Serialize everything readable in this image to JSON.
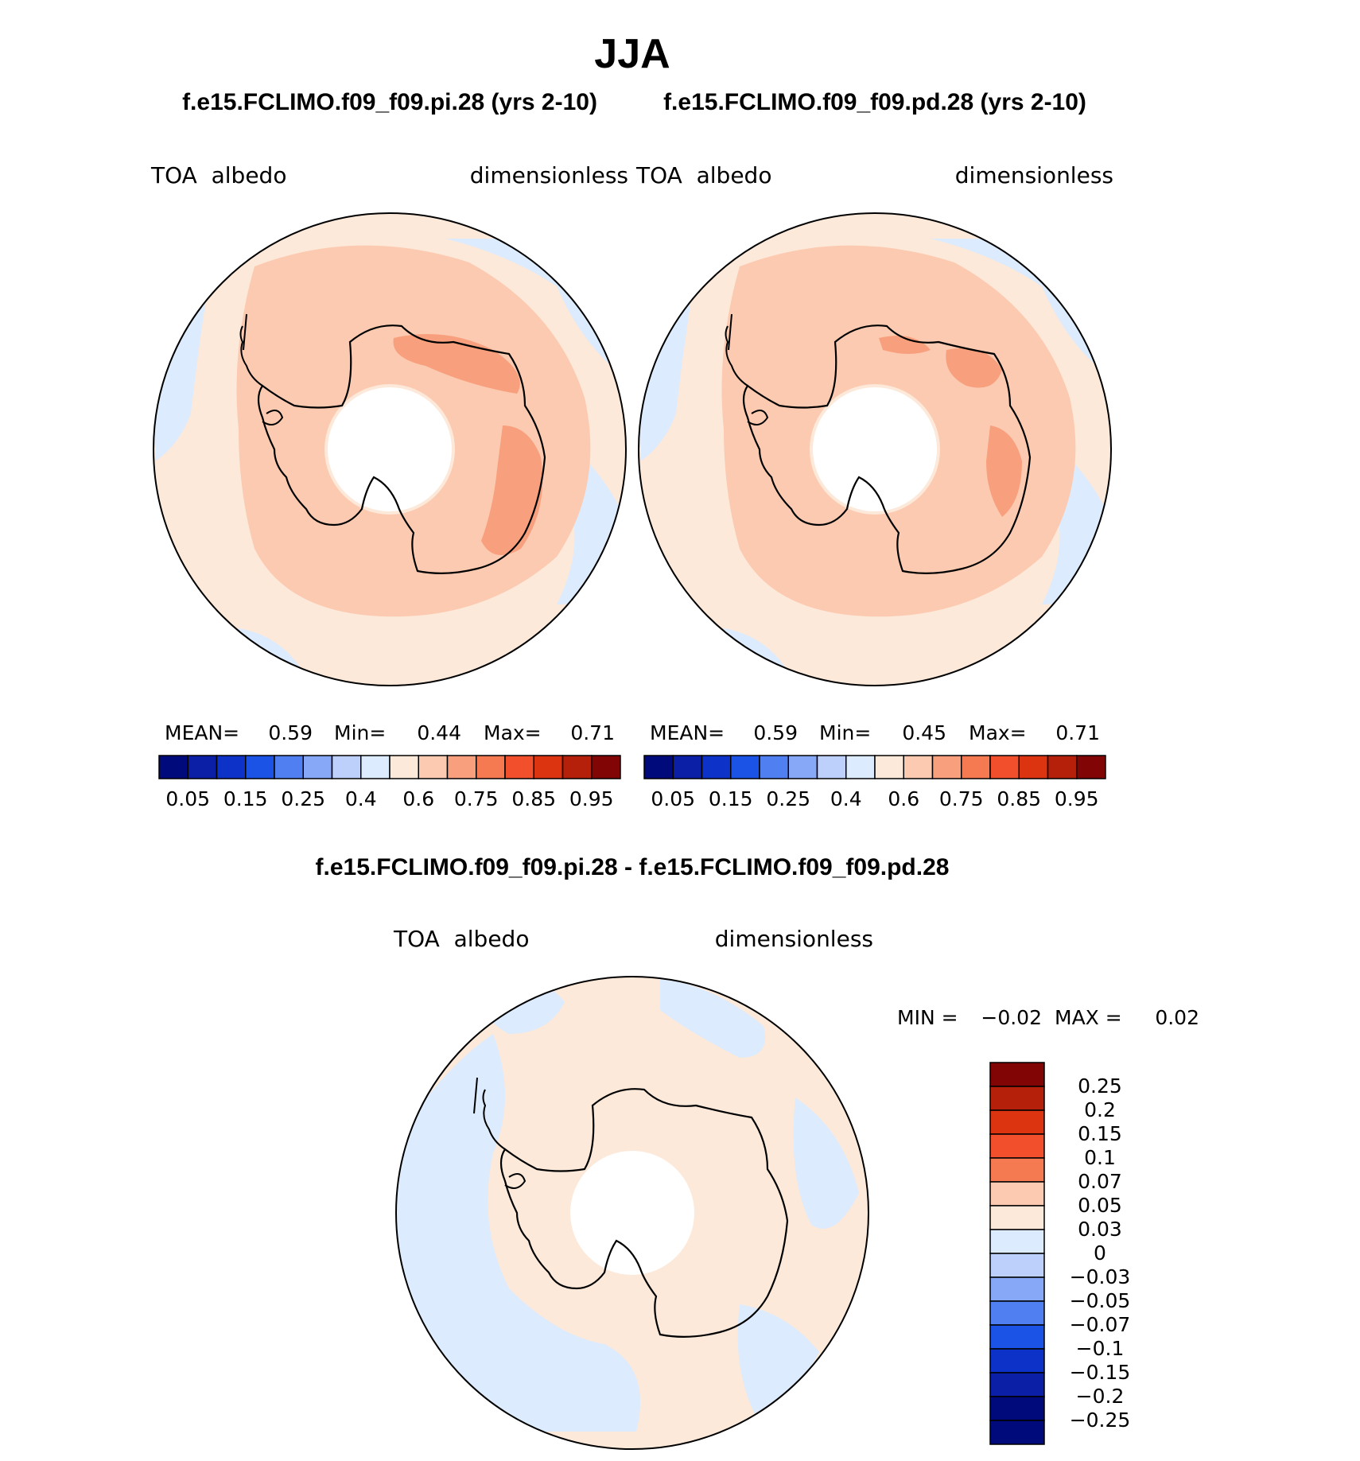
{
  "figure": {
    "title": "JJA",
    "header_left": "f.e15.FCLIMO.f09_f09.pi.28 (yrs 2-10)",
    "header_right": "f.e15.FCLIMO.f09_f09.pd.28 (yrs 2-10)",
    "diff_title": "f.e15.FCLIMO.f09_f09.pi.28 - f.e15.FCLIMO.f09_f09.pd.28"
  },
  "panels": [
    {
      "variable": "TOA  albedo",
      "units": "dimensionless",
      "stats": {
        "mean_label": "MEAN=",
        "mean": "0.59",
        "min_label": "Min=",
        "min": "0.44",
        "max_label": "Max=",
        "max": "0.71"
      }
    },
    {
      "variable": "TOA  albedo",
      "units": "dimensionless",
      "stats": {
        "mean_label": "MEAN=",
        "mean": "0.59",
        "min_label": "Min=",
        "min": "0.45",
        "max_label": "Max=",
        "max": "0.71"
      }
    }
  ],
  "diff_panel": {
    "variable": "TOA  albedo",
    "units": "dimensionless",
    "min_label": "MIN =",
    "min": "−0.02",
    "max_label": "MAX =",
    "max": "0.02"
  },
  "colorbar_horizontal": {
    "colors": [
      "#000a7a",
      "#0a1fa5",
      "#0d32c8",
      "#1a53e6",
      "#4f7ff0",
      "#86a8f6",
      "#bcd0fb",
      "#dcebfd",
      "#fde9d9",
      "#fccab1",
      "#f8a07d",
      "#f57a52",
      "#f24f2c",
      "#dc3310",
      "#b4200a",
      "#820505"
    ],
    "tick_labels": [
      "0.05",
      "0.15",
      "0.25",
      "0.4",
      "0.6",
      "0.75",
      "0.85",
      "0.95"
    ]
  },
  "colorbar_vertical": {
    "colors_top_to_bottom": [
      "#820505",
      "#b4200a",
      "#dc3310",
      "#f24f2c",
      "#f57a52",
      "#fccab1",
      "#fde9d9",
      "#dcebfd",
      "#bcd0fb",
      "#86a8f6",
      "#4f7ff0",
      "#1a53e6",
      "#0d32c8",
      "#0a1fa5",
      "#000a7a",
      "#000a7a"
    ],
    "tick_labels": [
      "0.25",
      "0.2",
      "0.15",
      "0.1",
      "0.07",
      "0.05",
      "0.03",
      "0",
      "−0.03",
      "−0.05",
      "−0.07",
      "−0.1",
      "−0.15",
      "−0.2",
      "−0.25"
    ]
  },
  "map_colors": {
    "ocean_low": "#dcebfd",
    "light": "#fde9d9",
    "mid": "#fccab1",
    "high": "#f8a07d",
    "coast": "#000000"
  }
}
